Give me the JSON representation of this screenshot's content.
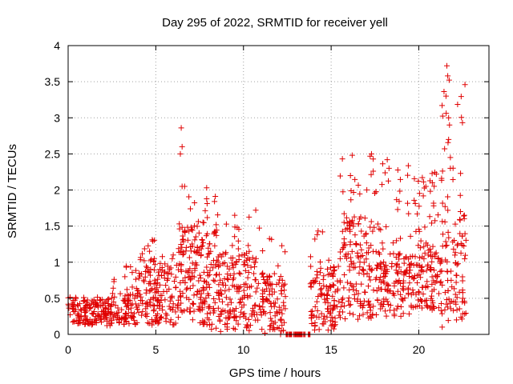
{
  "chart_data": {
    "type": "scatter",
    "title": "Day 295 of 2022, SRMTID for receiver yell",
    "xlabel": "GPS time / hours",
    "ylabel": "SRMTID / TECUs",
    "xlim": [
      0,
      24
    ],
    "ylim": [
      0,
      4
    ],
    "xticks": [
      0,
      5,
      10,
      15,
      20
    ],
    "xtick_labels": [
      "0",
      "5",
      "10",
      "15",
      "20"
    ],
    "yticks": [
      0,
      0.5,
      1,
      1.5,
      2,
      2.5,
      3,
      3.5,
      4
    ],
    "ytick_labels": [
      "0",
      "0.5",
      "1",
      "1.5",
      "2",
      "2.5",
      "3",
      "3.5",
      "4"
    ],
    "grid": true,
    "marker": "+",
    "color": "#e00000",
    "series": [
      {
        "name": "SRMTID",
        "segments": [
          {
            "x_start": 0.0,
            "x_end": 2.5,
            "y_min": 0.1,
            "y_max": 0.55,
            "y_typ": 0.3,
            "count": 160
          },
          {
            "x_start": 2.5,
            "x_end": 4.0,
            "y_min": 0.1,
            "y_max": 0.95,
            "y_typ": 0.35,
            "count": 90
          },
          {
            "x_start": 4.0,
            "x_end": 5.0,
            "y_min": 0.1,
            "y_max": 1.4,
            "y_typ": 0.6,
            "count": 80
          },
          {
            "x_start": 5.0,
            "x_end": 6.3,
            "y_min": 0.1,
            "y_max": 1.1,
            "y_typ": 0.55,
            "count": 90
          },
          {
            "x_start": 6.3,
            "x_end": 7.5,
            "y_min": 0.2,
            "y_max": 2.05,
            "y_typ": 0.9,
            "count": 110
          },
          {
            "x_start": 7.5,
            "x_end": 8.5,
            "y_min": 0.05,
            "y_max": 2.0,
            "y_typ": 0.8,
            "count": 100
          },
          {
            "x_start": 8.5,
            "x_end": 11.0,
            "y_min": 0.0,
            "y_max": 1.7,
            "y_typ": 0.6,
            "count": 180
          },
          {
            "x_start": 11.0,
            "x_end": 12.4,
            "y_min": 0.0,
            "y_max": 1.4,
            "y_typ": 0.45,
            "count": 100
          },
          {
            "x_start": 12.4,
            "x_end": 13.8,
            "y_min": 0.0,
            "y_max": 0.0,
            "y_typ": 0.0,
            "count": 40
          },
          {
            "x_start": 13.8,
            "x_end": 15.5,
            "y_min": 0.0,
            "y_max": 1.45,
            "y_typ": 0.5,
            "count": 120
          },
          {
            "x_start": 15.5,
            "x_end": 17.5,
            "y_min": 0.1,
            "y_max": 2.5,
            "y_typ": 0.9,
            "count": 160
          },
          {
            "x_start": 17.5,
            "x_end": 19.5,
            "y_min": 0.2,
            "y_max": 2.4,
            "y_typ": 0.7,
            "count": 150
          },
          {
            "x_start": 19.5,
            "x_end": 21.3,
            "y_min": 0.3,
            "y_max": 2.25,
            "y_typ": 0.8,
            "count": 150
          },
          {
            "x_start": 21.3,
            "x_end": 22.7,
            "y_min": 0.1,
            "y_max": 3.7,
            "y_typ": 0.9,
            "count": 110
          }
        ],
        "peaks": [
          {
            "x": 6.45,
            "y": 2.86
          },
          {
            "x": 6.5,
            "y": 2.6
          },
          {
            "x": 6.4,
            "y": 2.5
          },
          {
            "x": 6.5,
            "y": 2.05
          },
          {
            "x": 7.9,
            "y": 2.03
          },
          {
            "x": 9.5,
            "y": 1.65
          },
          {
            "x": 10.7,
            "y": 1.72
          },
          {
            "x": 16.2,
            "y": 2.48
          },
          {
            "x": 16.1,
            "y": 2.2
          },
          {
            "x": 17.3,
            "y": 2.5
          },
          {
            "x": 17.4,
            "y": 2.43
          },
          {
            "x": 17.4,
            "y": 2.26
          },
          {
            "x": 18.2,
            "y": 2.42
          },
          {
            "x": 18.3,
            "y": 2.3
          },
          {
            "x": 20.4,
            "y": 2.05
          },
          {
            "x": 21.0,
            "y": 2.22
          },
          {
            "x": 21.6,
            "y": 3.72
          },
          {
            "x": 21.65,
            "y": 3.58
          },
          {
            "x": 21.55,
            "y": 3.3
          },
          {
            "x": 21.7,
            "y": 3.0
          },
          {
            "x": 21.75,
            "y": 2.9
          },
          {
            "x": 21.7,
            "y": 2.7
          },
          {
            "x": 21.8,
            "y": 2.45
          },
          {
            "x": 21.8,
            "y": 2.3
          },
          {
            "x": 22.6,
            "y": 1.65
          }
        ]
      }
    ]
  }
}
